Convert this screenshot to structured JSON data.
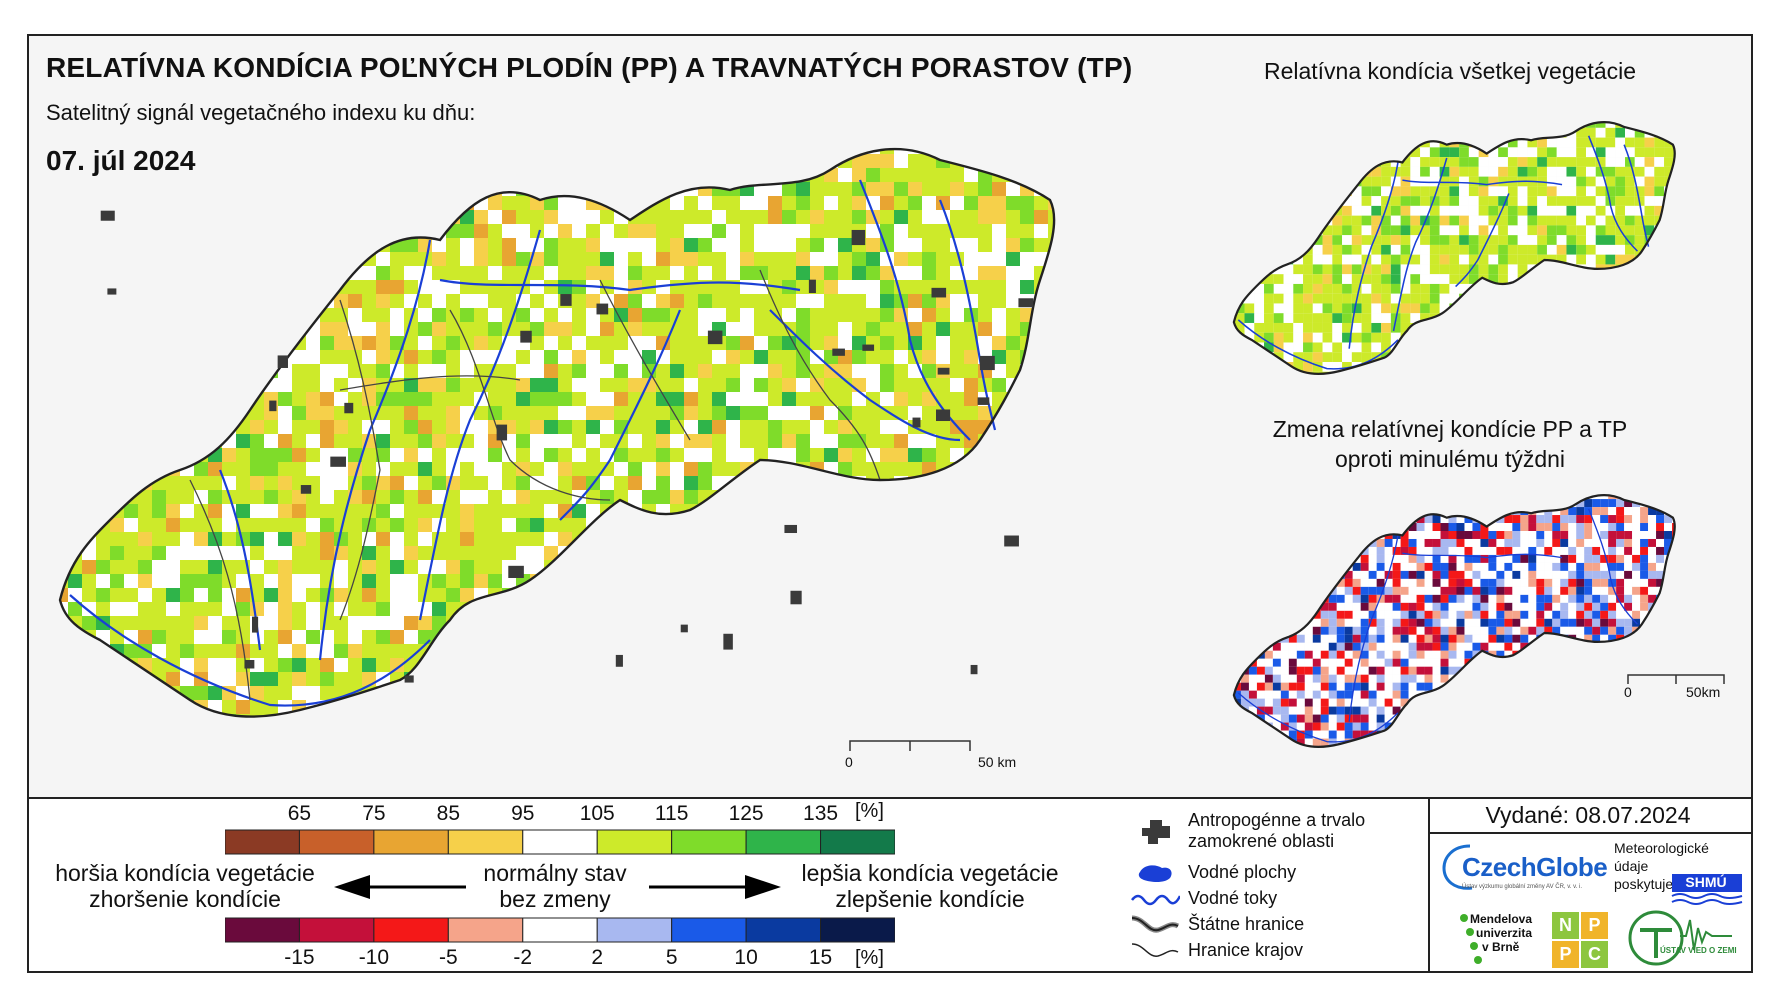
{
  "header": {
    "title": "RELATÍVNA KONDÍCIA POĽNÝCH PLODÍN (PP) A TRAVNATÝCH PORASTOV (TP)",
    "subtitle": "Satelitný signál vegetačného indexu ku dňu:",
    "date": "07. júl 2024"
  },
  "insets": {
    "all_vegetation_title": "Relatívna kondícia všetkej vegetácie",
    "change_title_line1": "Zmena relatívnej kondície PP a TP",
    "change_title_line2": "oproti minulému týždni"
  },
  "scale_bar": {
    "zero": "0",
    "fifty_km": "50 km",
    "inset_zero": "0",
    "inset_fifty": "50km"
  },
  "condition_ramp": {
    "labels": [
      "65",
      "75",
      "85",
      "95",
      "105",
      "115",
      "125",
      "135"
    ],
    "unit": "[%]",
    "colors": [
      "#8b3a24",
      "#c8602a",
      "#e8a532",
      "#f6d04a",
      "#ffffff",
      "#cdea2a",
      "#7fdc2a",
      "#2fb44a",
      "#137a4a"
    ]
  },
  "change_ramp": {
    "labels": [
      "-15",
      "-10",
      "-5",
      "-2",
      "2",
      "5",
      "10",
      "15"
    ],
    "unit": "[%]",
    "colors": [
      "#6a0a3c",
      "#c4103a",
      "#f41818",
      "#f5a48a",
      "#ffffff",
      "#a8b8f0",
      "#1a5ae8",
      "#0a3aa0",
      "#0a1a4a"
    ]
  },
  "descriptions": {
    "worse_line1": "horšia kondícia vegetácie",
    "worse_line2": "zhoršenie kondície",
    "normal_line1": "normálny stav",
    "normal_line2": "bez zmeny",
    "better_line1": "lepšia kondícia vegetácie",
    "better_line2": "zlepšenie kondície"
  },
  "map_legend": {
    "urban_line1": "Antropogénne a trvalo",
    "urban_line2": "zamokrené oblasti",
    "water_bodies": "Vodné plochy",
    "rivers": "Vodné toky",
    "state_border": "Štátne hranice",
    "region_border": "Hranice krajov"
  },
  "issued": "Vydané: 08.07.2024",
  "logos": {
    "czechglobe": "CzechGlobe",
    "czechglobe_sub": "Ústav výzkumu globální změny AV ČR, v. v. i.",
    "meteo_line1": "Meteorologické",
    "meteo_line2": "údaje",
    "meteo_line3": "poskytuje:",
    "shmu": "SHMÚ",
    "mendel_line1": "Mendelova",
    "mendel_line2": "univerzita",
    "mendel_line3": "v Brně",
    "nppc": [
      "N",
      "P",
      "P",
      "C"
    ],
    "uvz": "ÚSTAV VIED O ZEMI"
  },
  "colors": {
    "rivers": "#1a3fd6",
    "urban": "#3a3a3a",
    "border": "#222222"
  }
}
